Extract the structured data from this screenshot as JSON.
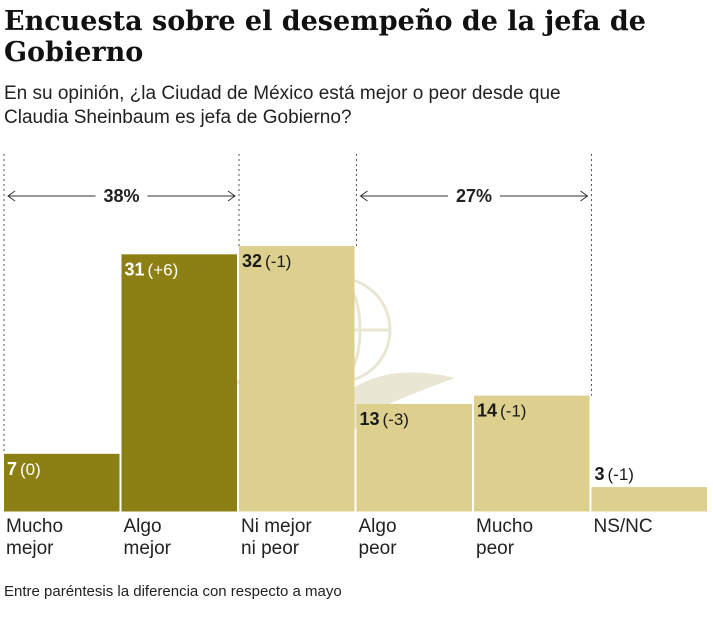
{
  "title": "Encuesta sobre el desempeño de la jefa de Gobierno",
  "subtitle": "En su opinión, ¿la Ciudad de México está mejor o peor desde que Claudia Sheinbaum es jefa de Gobierno?",
  "footnote": "Entre paréntesis la diferencia con respecto a mayo",
  "colors": {
    "dark": "#8c7f14",
    "light": "#ddd08f",
    "dark_text": "#ffffff",
    "light_text": "#1a1a1a",
    "divider": "#555555"
  },
  "chart_data": {
    "type": "bar",
    "categories": [
      [
        "Mucho",
        "mejor"
      ],
      [
        "Algo",
        "mejor"
      ],
      [
        "Ni mejor",
        "ni peor"
      ],
      [
        "Algo",
        "peor"
      ],
      [
        "Mucho",
        "peor"
      ],
      [
        "NS/NC"
      ]
    ],
    "values": [
      7,
      31,
      32,
      13,
      14,
      3
    ],
    "labels": [
      "7",
      "31",
      "32",
      "13",
      "14",
      "3"
    ],
    "differences": [
      "(0)",
      "(+6)",
      "(-1)",
      "(-3)",
      "(-1)",
      "(-1)"
    ],
    "highlight": [
      true,
      true,
      false,
      false,
      false,
      false
    ],
    "groups": [
      {
        "label": "38%",
        "from": 0,
        "to": 1
      },
      {
        "label": "27%",
        "from": 3,
        "to": 4
      }
    ],
    "ylim": [
      0,
      32
    ]
  }
}
